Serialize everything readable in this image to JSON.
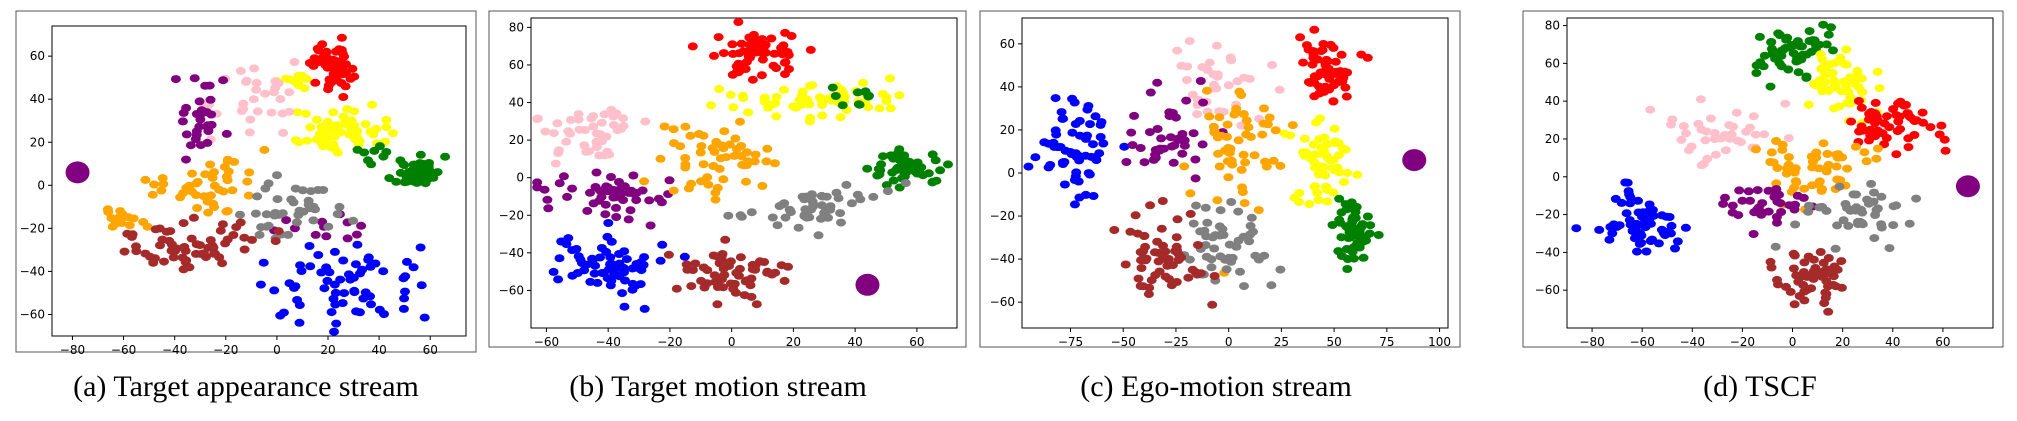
{
  "colors": {
    "red": "#ff0000",
    "green": "#008000",
    "yellow": "#ffff00",
    "pink": "#ffc0cb",
    "purple": "#800080",
    "orange": "#ffa500",
    "gray": "#808080",
    "brown": "#a52a2a",
    "blue": "#0000ff"
  },
  "chart_data": [
    {
      "type": "scatter",
      "caption": "(a) Target appearance stream",
      "xlim": [
        -88,
        74
      ],
      "ylim": [
        -70,
        74
      ],
      "xticks": [
        -80,
        -60,
        -40,
        -20,
        0,
        20,
        40,
        60
      ],
      "yticks": [
        -60,
        -40,
        -20,
        0,
        20,
        40,
        60
      ],
      "clusters": [
        {
          "color": "red",
          "cx": 22,
          "cy": 56,
          "sx": 4,
          "sy": 6,
          "n": 60
        },
        {
          "color": "yellow",
          "cx": 22,
          "cy": 24,
          "sx": 9,
          "sy": 5,
          "n": 60
        },
        {
          "color": "yellow",
          "cx": 5,
          "cy": 50,
          "sx": 4,
          "sy": 2,
          "n": 10
        },
        {
          "color": "green",
          "cx": 55,
          "cy": 6,
          "sx": 4,
          "sy": 3,
          "n": 55
        },
        {
          "color": "green",
          "cx": 38,
          "cy": 15,
          "sx": 4,
          "sy": 3,
          "n": 8
        },
        {
          "color": "pink",
          "cx": -5,
          "cy": 40,
          "sx": 12,
          "sy": 8,
          "n": 30
        },
        {
          "color": "purple",
          "cx": -30,
          "cy": 30,
          "sx": 5,
          "sy": 10,
          "n": 30
        },
        {
          "color": "purple",
          "cx": 15,
          "cy": -20,
          "sx": 10,
          "sy": 4,
          "n": 12
        },
        {
          "color": "orange",
          "cx": -25,
          "cy": 0,
          "sx": 10,
          "sy": 7,
          "n": 45
        },
        {
          "color": "orange",
          "cx": -60,
          "cy": -15,
          "sx": 6,
          "sy": 4,
          "n": 15
        },
        {
          "color": "gray",
          "cx": 5,
          "cy": -10,
          "sx": 12,
          "sy": 7,
          "n": 40
        },
        {
          "color": "brown",
          "cx": -35,
          "cy": -28,
          "sx": 14,
          "sy": 5,
          "n": 60
        },
        {
          "color": "blue",
          "cx": 25,
          "cy": -45,
          "sx": 15,
          "sy": 9,
          "n": 65
        }
      ],
      "marker": {
        "color": "purple",
        "x": -78,
        "y": 6
      }
    },
    {
      "type": "scatter",
      "caption": "(b) Target motion stream",
      "xlim": [
        -65,
        73
      ],
      "ylim": [
        -80,
        85
      ],
      "xticks": [
        -60,
        -40,
        -20,
        0,
        20,
        40,
        60
      ],
      "yticks": [
        -60,
        -40,
        -20,
        0,
        20,
        40,
        60,
        80
      ],
      "clusters": [
        {
          "color": "red",
          "cx": 10,
          "cy": 65,
          "sx": 8,
          "sy": 7,
          "n": 60
        },
        {
          "color": "yellow",
          "cx": 28,
          "cy": 42,
          "sx": 15,
          "sy": 5,
          "n": 60
        },
        {
          "color": "green",
          "cx": 55,
          "cy": 5,
          "sx": 6,
          "sy": 4,
          "n": 50
        },
        {
          "color": "green",
          "cx": 40,
          "cy": 45,
          "sx": 5,
          "sy": 3,
          "n": 10
        },
        {
          "color": "pink",
          "cx": -45,
          "cy": 25,
          "sx": 9,
          "sy": 7,
          "n": 45
        },
        {
          "color": "purple",
          "cx": -40,
          "cy": -8,
          "sx": 12,
          "sy": 6,
          "n": 50
        },
        {
          "color": "orange",
          "cx": -5,
          "cy": 10,
          "sx": 10,
          "sy": 9,
          "n": 55
        },
        {
          "color": "gray",
          "cx": 28,
          "cy": -15,
          "sx": 12,
          "sy": 6,
          "n": 50
        },
        {
          "color": "brown",
          "cx": 0,
          "cy": -50,
          "sx": 9,
          "sy": 7,
          "n": 60
        },
        {
          "color": "blue",
          "cx": -40,
          "cy": -50,
          "sx": 9,
          "sy": 8,
          "n": 65
        }
      ],
      "marker": {
        "color": "purple",
        "x": 44,
        "y": -57
      }
    },
    {
      "type": "scatter",
      "caption": "(c)  Ego-motion stream",
      "xlim": [
        -98,
        104
      ],
      "ylim": [
        -72,
        72
      ],
      "xticks": [
        -75,
        -50,
        -25,
        0,
        25,
        50,
        75,
        100
      ],
      "yticks": [
        -60,
        -40,
        -20,
        0,
        20,
        40,
        60
      ],
      "clusters": [
        {
          "color": "red",
          "cx": 48,
          "cy": 48,
          "sx": 6,
          "sy": 8,
          "n": 60
        },
        {
          "color": "yellow",
          "cx": 45,
          "cy": 5,
          "sx": 8,
          "sy": 10,
          "n": 60
        },
        {
          "color": "green",
          "cx": 58,
          "cy": -28,
          "sx": 5,
          "sy": 8,
          "n": 50
        },
        {
          "color": "pink",
          "cx": -5,
          "cy": 45,
          "sx": 14,
          "sy": 12,
          "n": 35
        },
        {
          "color": "blue",
          "cx": -72,
          "cy": 15,
          "sx": 8,
          "sy": 12,
          "n": 60
        },
        {
          "color": "purple",
          "cx": -30,
          "cy": 20,
          "sx": 12,
          "sy": 10,
          "n": 40
        },
        {
          "color": "orange",
          "cx": 5,
          "cy": 10,
          "sx": 12,
          "sy": 14,
          "n": 55
        },
        {
          "color": "gray",
          "cx": 0,
          "cy": -35,
          "sx": 10,
          "sy": 10,
          "n": 50
        },
        {
          "color": "brown",
          "cx": -30,
          "cy": -38,
          "sx": 10,
          "sy": 9,
          "n": 60
        }
      ],
      "marker": {
        "color": "purple",
        "x": 88,
        "y": 6
      }
    },
    {
      "type": "scatter",
      "caption": "(d)  TSCF",
      "xlim": [
        -90,
        80
      ],
      "ylim": [
        -80,
        84
      ],
      "xticks": [
        -80,
        -60,
        -40,
        -20,
        0,
        20,
        40,
        60
      ],
      "yticks": [
        -60,
        -40,
        -20,
        0,
        20,
        40,
        60,
        80
      ],
      "clusters": [
        {
          "color": "green",
          "cx": 0,
          "cy": 65,
          "sx": 8,
          "sy": 7,
          "n": 55
        },
        {
          "color": "yellow",
          "cx": 18,
          "cy": 48,
          "sx": 7,
          "sy": 10,
          "n": 55
        },
        {
          "color": "red",
          "cx": 40,
          "cy": 28,
          "sx": 9,
          "sy": 7,
          "n": 55
        },
        {
          "color": "pink",
          "cx": -28,
          "cy": 22,
          "sx": 14,
          "sy": 8,
          "n": 40
        },
        {
          "color": "orange",
          "cx": 8,
          "cy": 5,
          "sx": 12,
          "sy": 9,
          "n": 55
        },
        {
          "color": "purple",
          "cx": -10,
          "cy": -15,
          "sx": 10,
          "sy": 6,
          "n": 35
        },
        {
          "color": "gray",
          "cx": 25,
          "cy": -18,
          "sx": 10,
          "sy": 7,
          "n": 45
        },
        {
          "color": "blue",
          "cx": -60,
          "cy": -25,
          "sx": 8,
          "sy": 9,
          "n": 60
        },
        {
          "color": "brown",
          "cx": 8,
          "cy": -55,
          "sx": 8,
          "sy": 7,
          "n": 55
        }
      ],
      "marker": {
        "color": "purple",
        "x": 70,
        "y": -5
      }
    }
  ]
}
